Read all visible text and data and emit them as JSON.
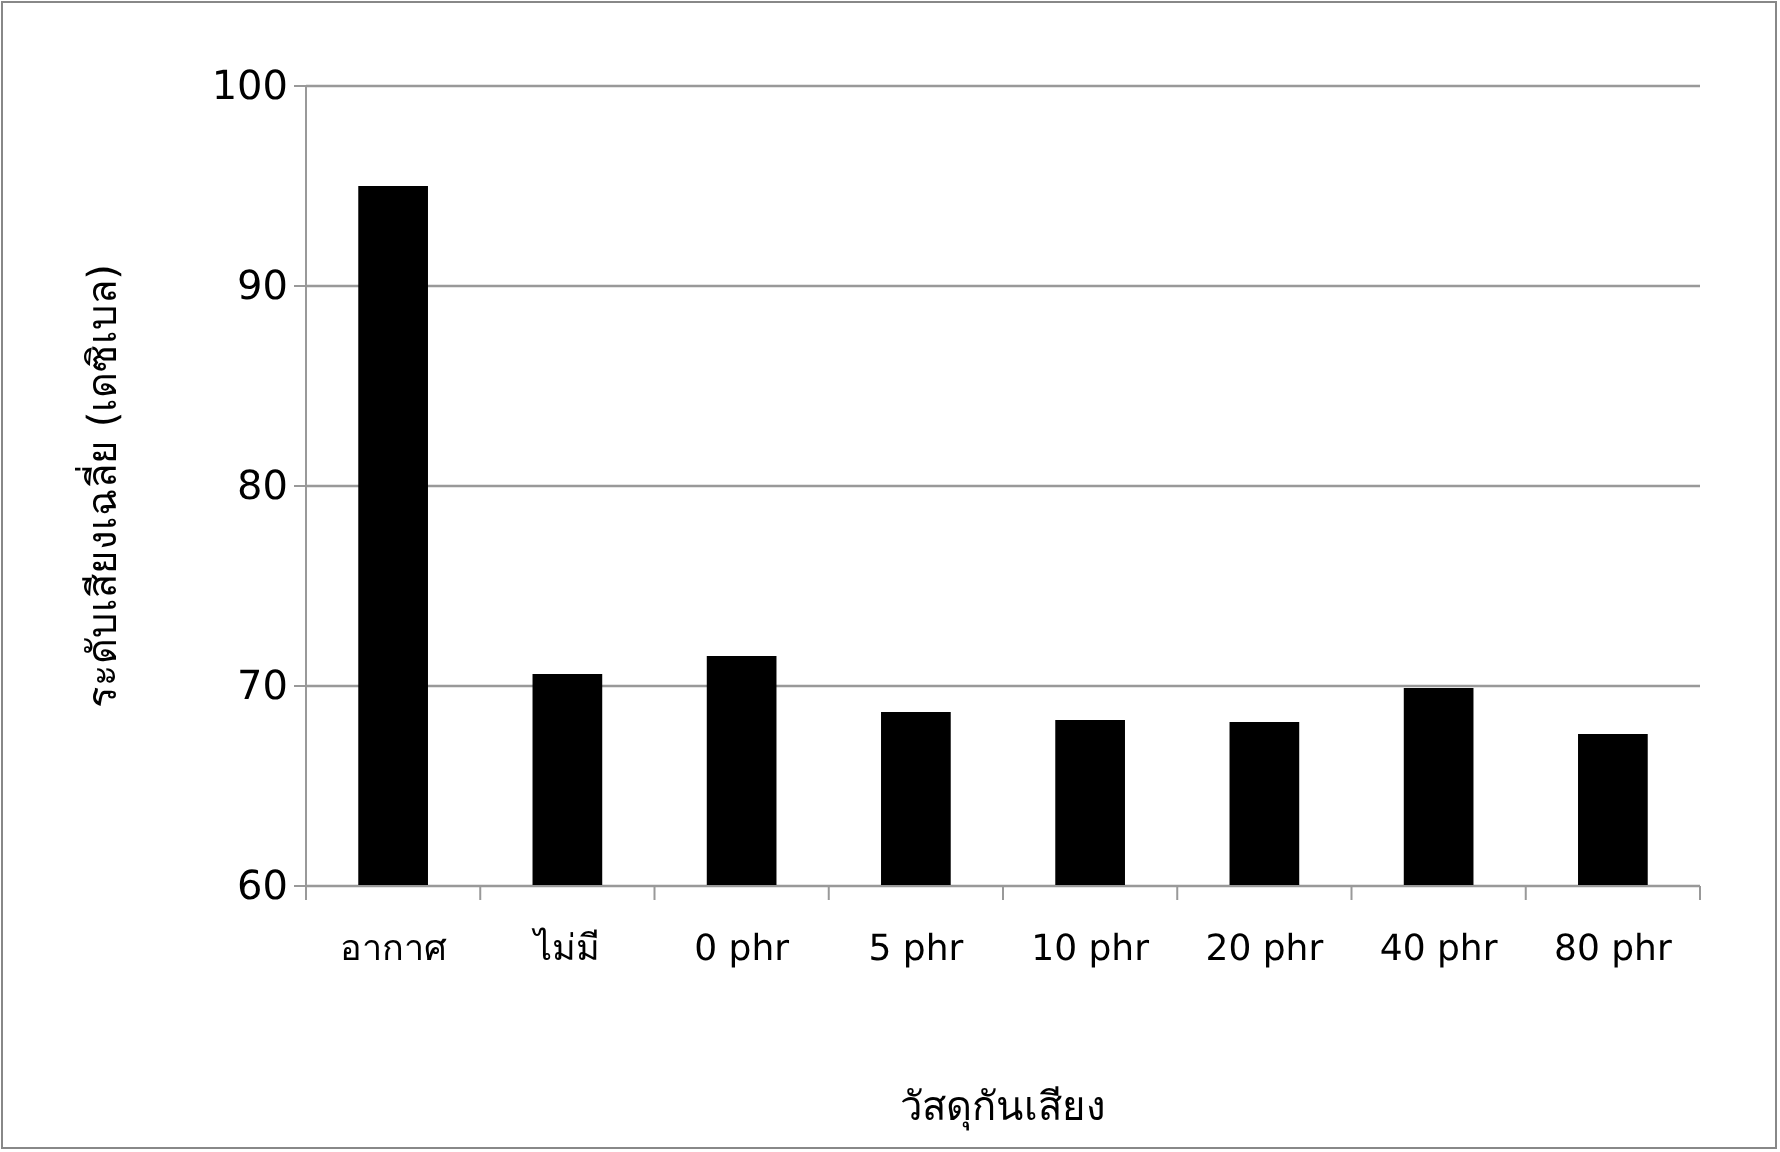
{
  "chart_data": {
    "type": "bar",
    "xlabel": "วัสดุกันเสียง",
    "ylabel": "ระดับเสียงเฉลี่ย (เดซิเบล)",
    "categories": [
      "อากาศ",
      "ไม่มี",
      "0 phr",
      "5 phr",
      "10 phr",
      "20 phr",
      "40 phr",
      "80 phr"
    ],
    "values": [
      95,
      70.6,
      71.5,
      68.7,
      68.3,
      68.2,
      69.9,
      67.6
    ],
    "color": "#000000",
    "ylim": [
      60,
      100
    ],
    "yticks": [
      60,
      70,
      80,
      90,
      100
    ],
    "grid": "y"
  }
}
